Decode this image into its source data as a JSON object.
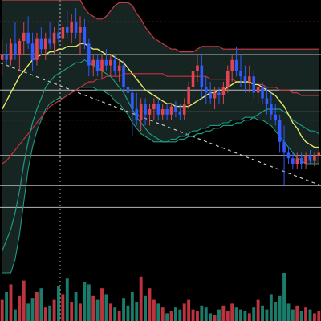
{
  "theme": {
    "background": "#000000",
    "bull": "#e0454f",
    "bear": "#2f5bff",
    "vol_bull": "#d23a45",
    "vol_bear": "#1f8a77",
    "bb_line": "#c83a48",
    "bb_fill": "#1a2a28",
    "ma_fast": "#e8e86a",
    "ma_mid": "#1f9a82",
    "ma_slow": "#c8323c",
    "hline": "#d8d8d8",
    "dash": "#c8c8c8",
    "dot_red": "#c8323c"
  },
  "chart_data": {
    "type": "candlestick",
    "price_range": [
      0,
      100
    ],
    "grid_levels": [
      24,
      32,
      43,
      59,
      67,
      80
    ],
    "dotted_levels": [
      92,
      56
    ],
    "dashed_trend": [
      [
        0,
        77
      ],
      [
        100,
        32
      ]
    ],
    "vertical_marker_at": 18.75,
    "candles": [
      {
        "o": 78,
        "h": 86,
        "l": 72,
        "c": 80
      },
      {
        "o": 80,
        "h": 84,
        "l": 76,
        "c": 78
      },
      {
        "o": 78,
        "h": 86,
        "l": 76,
        "c": 84
      },
      {
        "o": 84,
        "h": 92,
        "l": 78,
        "c": 80
      },
      {
        "o": 80,
        "h": 86,
        "l": 74,
        "c": 85
      },
      {
        "o": 85,
        "h": 92,
        "l": 80,
        "c": 88
      },
      {
        "o": 88,
        "h": 94,
        "l": 82,
        "c": 84
      },
      {
        "o": 84,
        "h": 88,
        "l": 74,
        "c": 78
      },
      {
        "o": 78,
        "h": 88,
        "l": 76,
        "c": 86
      },
      {
        "o": 86,
        "h": 90,
        "l": 80,
        "c": 82
      },
      {
        "o": 82,
        "h": 88,
        "l": 78,
        "c": 86
      },
      {
        "o": 86,
        "h": 92,
        "l": 82,
        "c": 84
      },
      {
        "o": 84,
        "h": 90,
        "l": 80,
        "c": 88
      },
      {
        "o": 88,
        "h": 92,
        "l": 84,
        "c": 86
      },
      {
        "o": 86,
        "h": 92,
        "l": 82,
        "c": 90
      },
      {
        "o": 90,
        "h": 96,
        "l": 86,
        "c": 88
      },
      {
        "o": 88,
        "h": 95,
        "l": 84,
        "c": 92
      },
      {
        "o": 92,
        "h": 97,
        "l": 86,
        "c": 88
      },
      {
        "o": 88,
        "h": 94,
        "l": 80,
        "c": 90
      },
      {
        "o": 90,
        "h": 93,
        "l": 82,
        "c": 84
      },
      {
        "o": 84,
        "h": 86,
        "l": 72,
        "c": 76
      },
      {
        "o": 76,
        "h": 80,
        "l": 72,
        "c": 78
      },
      {
        "o": 78,
        "h": 80,
        "l": 72,
        "c": 74
      },
      {
        "o": 74,
        "h": 80,
        "l": 71,
        "c": 78
      },
      {
        "o": 78,
        "h": 82,
        "l": 74,
        "c": 76
      },
      {
        "o": 76,
        "h": 80,
        "l": 72,
        "c": 78
      },
      {
        "o": 78,
        "h": 80,
        "l": 72,
        "c": 74
      },
      {
        "o": 74,
        "h": 78,
        "l": 70,
        "c": 76
      },
      {
        "o": 76,
        "h": 78,
        "l": 66,
        "c": 68
      },
      {
        "o": 68,
        "h": 72,
        "l": 62,
        "c": 66
      },
      {
        "o": 66,
        "h": 68,
        "l": 50,
        "c": 60
      },
      {
        "o": 60,
        "h": 66,
        "l": 54,
        "c": 56
      },
      {
        "o": 56,
        "h": 64,
        "l": 52,
        "c": 62
      },
      {
        "o": 62,
        "h": 64,
        "l": 54,
        "c": 58
      },
      {
        "o": 58,
        "h": 62,
        "l": 54,
        "c": 60
      },
      {
        "o": 60,
        "h": 64,
        "l": 56,
        "c": 62
      },
      {
        "o": 62,
        "h": 64,
        "l": 56,
        "c": 58
      },
      {
        "o": 58,
        "h": 62,
        "l": 56,
        "c": 60
      },
      {
        "o": 60,
        "h": 62,
        "l": 56,
        "c": 58
      },
      {
        "o": 58,
        "h": 62,
        "l": 56,
        "c": 61
      },
      {
        "o": 61,
        "h": 63,
        "l": 57,
        "c": 59
      },
      {
        "o": 59,
        "h": 62,
        "l": 56,
        "c": 58
      },
      {
        "o": 58,
        "h": 64,
        "l": 56,
        "c": 62
      },
      {
        "o": 62,
        "h": 70,
        "l": 60,
        "c": 68
      },
      {
        "o": 68,
        "h": 78,
        "l": 64,
        "c": 74
      },
      {
        "o": 74,
        "h": 80,
        "l": 70,
        "c": 76
      },
      {
        "o": 76,
        "h": 80,
        "l": 64,
        "c": 68
      },
      {
        "o": 68,
        "h": 72,
        "l": 62,
        "c": 66
      },
      {
        "o": 66,
        "h": 70,
        "l": 62,
        "c": 64
      },
      {
        "o": 64,
        "h": 68,
        "l": 60,
        "c": 66
      },
      {
        "o": 66,
        "h": 68,
        "l": 62,
        "c": 65
      },
      {
        "o": 65,
        "h": 70,
        "l": 62,
        "c": 68
      },
      {
        "o": 68,
        "h": 76,
        "l": 66,
        "c": 74
      },
      {
        "o": 74,
        "h": 80,
        "l": 70,
        "c": 78
      },
      {
        "o": 78,
        "h": 83,
        "l": 72,
        "c": 74
      },
      {
        "o": 74,
        "h": 80,
        "l": 68,
        "c": 72
      },
      {
        "o": 72,
        "h": 76,
        "l": 66,
        "c": 70
      },
      {
        "o": 70,
        "h": 76,
        "l": 66,
        "c": 72
      },
      {
        "o": 72,
        "h": 74,
        "l": 64,
        "c": 66
      },
      {
        "o": 66,
        "h": 70,
        "l": 62,
        "c": 68
      },
      {
        "o": 68,
        "h": 70,
        "l": 62,
        "c": 64
      },
      {
        "o": 64,
        "h": 68,
        "l": 58,
        "c": 62
      },
      {
        "o": 62,
        "h": 66,
        "l": 56,
        "c": 58
      },
      {
        "o": 58,
        "h": 62,
        "l": 54,
        "c": 56
      },
      {
        "o": 56,
        "h": 58,
        "l": 44,
        "c": 48
      },
      {
        "o": 48,
        "h": 54,
        "l": 32,
        "c": 44
      },
      {
        "o": 44,
        "h": 46,
        "l": 40,
        "c": 42
      },
      {
        "o": 42,
        "h": 44,
        "l": 38,
        "c": 40
      },
      {
        "o": 40,
        "h": 44,
        "l": 38,
        "c": 42
      },
      {
        "o": 42,
        "h": 44,
        "l": 38,
        "c": 40
      },
      {
        "o": 40,
        "h": 44,
        "l": 38,
        "c": 43
      },
      {
        "o": 43,
        "h": 45,
        "l": 40,
        "c": 41
      },
      {
        "o": 41,
        "h": 44,
        "l": 39,
        "c": 43
      },
      {
        "o": 43,
        "h": 46,
        "l": 40,
        "c": 44
      }
    ],
    "volume": [
      22,
      30,
      38,
      12,
      26,
      42,
      18,
      24,
      30,
      34,
      14,
      16,
      22,
      36,
      28,
      44,
      20,
      30,
      18,
      40,
      38,
      26,
      22,
      34,
      28,
      18,
      14,
      10,
      24,
      16,
      30,
      20,
      46,
      26,
      34,
      22,
      18,
      14,
      8,
      10,
      14,
      12,
      18,
      22,
      12,
      10,
      16,
      14,
      8,
      6,
      12,
      16,
      10,
      18,
      14,
      12,
      10,
      8,
      14,
      22,
      16,
      12,
      28,
      20,
      26,
      50,
      18,
      12,
      16,
      10,
      14,
      12,
      8,
      10
    ],
    "ma_fast": [
      60,
      63,
      66,
      69,
      72,
      74,
      76,
      78,
      79,
      80,
      80,
      81,
      81,
      82,
      82,
      83,
      83,
      83,
      84,
      84,
      83,
      82,
      82,
      81,
      80,
      80,
      79,
      78,
      77,
      75,
      73,
      71,
      69,
      67,
      66,
      65,
      64,
      63,
      62,
      62,
      61,
      61,
      61,
      61,
      62,
      63,
      64,
      65,
      66,
      66,
      67,
      67,
      68,
      69,
      70,
      70,
      70,
      70,
      69,
      69,
      68,
      67,
      66,
      65,
      63,
      61,
      58,
      55,
      53,
      50,
      48,
      47,
      46,
      46
    ],
    "ma_mid": [
      8,
      12,
      16,
      22,
      30,
      40,
      48,
      55,
      60,
      64,
      68,
      70,
      72,
      73,
      74,
      75,
      76,
      77,
      77,
      78,
      77,
      76,
      75,
      74,
      73,
      72,
      70,
      68,
      66,
      63,
      60,
      57,
      55,
      53,
      51,
      50,
      49,
      48,
      48,
      48,
      48,
      49,
      49,
      50,
      50,
      51,
      51,
      52,
      52,
      53,
      53,
      54,
      54,
      54,
      55,
      55,
      56,
      56,
      57,
      58,
      59,
      60,
      60,
      60,
      60,
      59,
      58,
      56,
      55,
      54,
      53,
      52,
      52,
      51
    ],
    "ma_slow": [
      40,
      41,
      43,
      45,
      47,
      49,
      51,
      53,
      55,
      57,
      59,
      61,
      62,
      63,
      64,
      65,
      66,
      67,
      68,
      69,
      70,
      70,
      71,
      71,
      72,
      72,
      72,
      72,
      73,
      73,
      73,
      73,
      73,
      73,
      73,
      73,
      73,
      73,
      72,
      72,
      72,
      72,
      72,
      72,
      72,
      72,
      72,
      72,
      71,
      71,
      71,
      71,
      71,
      71,
      70,
      70,
      70,
      70,
      69,
      69,
      69,
      68,
      68,
      68,
      67,
      67,
      67,
      66,
      66,
      65,
      65,
      65,
      65,
      65
    ],
    "bb_upper": [
      100,
      100,
      100,
      100,
      100,
      100,
      100,
      100,
      100,
      100,
      100,
      100,
      100,
      100,
      100,
      100,
      100,
      100,
      100,
      97,
      95,
      94,
      93,
      93,
      94,
      96,
      98,
      99,
      99,
      99,
      98,
      95,
      93,
      90,
      88,
      86,
      85,
      84,
      83,
      82,
      82,
      81,
      81,
      81,
      81,
      82,
      83,
      83,
      83,
      83,
      83,
      82,
      82,
      82,
      82,
      82,
      82,
      82,
      82,
      82,
      82,
      82,
      82,
      82,
      82,
      82,
      82,
      82,
      82,
      82,
      82,
      82,
      82,
      82
    ],
    "bb_lower": [
      0,
      0,
      0,
      5,
      14,
      26,
      38,
      46,
      52,
      56,
      60,
      62,
      63,
      64,
      64,
      65,
      66,
      67,
      68,
      68,
      68,
      68,
      67,
      67,
      66,
      65,
      63,
      62,
      60,
      58,
      55,
      53,
      51,
      50,
      49,
      48,
      48,
      48,
      48,
      49,
      49,
      50,
      50,
      51,
      52,
      52,
      53,
      53,
      54,
      54,
      54,
      55,
      55,
      56,
      56,
      56,
      57,
      57,
      57,
      56,
      56,
      55,
      54,
      52,
      50,
      48,
      46,
      44,
      42,
      41,
      40,
      40,
      40,
      40
    ]
  }
}
